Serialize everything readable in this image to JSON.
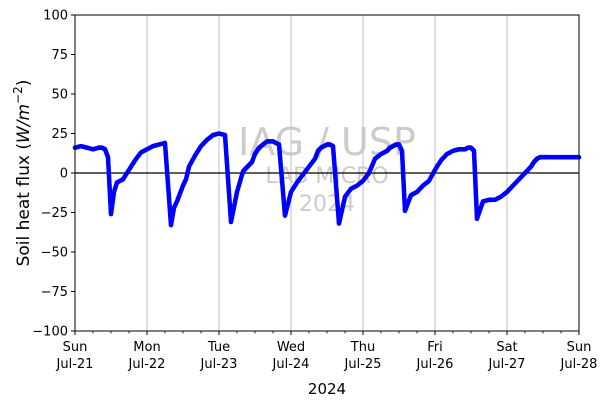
{
  "chart_data": {
    "type": "scatter",
    "ylabel": "Soil heat flux (W/m⁻²)",
    "ylabel_main": "Soil heat flux (",
    "ylabel_unit_base": "W",
    "ylabel_unit_slash": "/",
    "ylabel_unit_m": "m",
    "ylabel_unit_exp": "−2",
    "ylabel_close": ")",
    "xlabel": "2024",
    "ylim": [
      -100,
      100
    ],
    "yticks": [
      "−100",
      "−75",
      "−50",
      "−25",
      "0",
      "25",
      "50",
      "75",
      "100"
    ],
    "ytick_values": [
      -100,
      -75,
      -50,
      -25,
      0,
      25,
      50,
      75,
      100
    ],
    "xlim": [
      "2024-07-21",
      "2024-07-28"
    ],
    "xticks": [
      {
        "day": "Sun",
        "date": "Jul-21"
      },
      {
        "day": "Mon",
        "date": "Jul-22"
      },
      {
        "day": "Tue",
        "date": "Jul-23"
      },
      {
        "day": "Wed",
        "date": "Jul-24"
      },
      {
        "day": "Thu",
        "date": "Jul-25"
      },
      {
        "day": "Fri",
        "date": "Jul-26"
      },
      {
        "day": "Sat",
        "date": "Jul-27"
      },
      {
        "day": "Sun",
        "date": "Jul-28"
      }
    ],
    "grid": "vertical",
    "zero_line": true,
    "marker_color": "#0000ff",
    "watermark": [
      "IAG / USP",
      "LAB MICRO",
      "2024"
    ],
    "series": [
      {
        "x": [
          "2024-07-21 00:00",
          "2024-07-21 02:00",
          "2024-07-21 04:00",
          "2024-07-21 06:00",
          "2024-07-21 08:00",
          "2024-07-21 09:00",
          "2024-07-21 10:00",
          "2024-07-21 11:00",
          "2024-07-21 12:00",
          "2024-07-21 13:00",
          "2024-07-21 14:00",
          "2024-07-21 16:00",
          "2024-07-21 18:00",
          "2024-07-21 20:00",
          "2024-07-21 22:00",
          "2024-07-22 00:00",
          "2024-07-22 02:00",
          "2024-07-22 04:00",
          "2024-07-22 06:00",
          "2024-07-22 08:00",
          "2024-07-22 09:00",
          "2024-07-22 10:00",
          "2024-07-22 11:00",
          "2024-07-22 12:00",
          "2024-07-22 13:00",
          "2024-07-22 14:00",
          "2024-07-22 16:00",
          "2024-07-22 18:00",
          "2024-07-22 20:00",
          "2024-07-22 22:00",
          "2024-07-23 00:00",
          "2024-07-23 02:00",
          "2024-07-23 04:00",
          "2024-07-23 06:00",
          "2024-07-23 08:00",
          "2024-07-23 09:00",
          "2024-07-23 10:00",
          "2024-07-23 11:00",
          "2024-07-23 12:00",
          "2024-07-23 13:00",
          "2024-07-23 14:00",
          "2024-07-23 16:00",
          "2024-07-23 18:00",
          "2024-07-23 20:00",
          "2024-07-23 22:00",
          "2024-07-24 00:00",
          "2024-07-24 02:00",
          "2024-07-24 04:00",
          "2024-07-24 06:00",
          "2024-07-24 08:00",
          "2024-07-24 09:00",
          "2024-07-24 10:00",
          "2024-07-24 11:00",
          "2024-07-24 12:00",
          "2024-07-24 13:00",
          "2024-07-24 14:00",
          "2024-07-24 16:00",
          "2024-07-24 18:00",
          "2024-07-24 20:00",
          "2024-07-24 22:00",
          "2024-07-25 00:00",
          "2024-07-25 02:00",
          "2024-07-25 04:00",
          "2024-07-25 06:00",
          "2024-07-25 08:00",
          "2024-07-25 09:00",
          "2024-07-25 10:00",
          "2024-07-25 11:00",
          "2024-07-25 12:00",
          "2024-07-25 13:00",
          "2024-07-25 14:00",
          "2024-07-25 16:00",
          "2024-07-25 18:00",
          "2024-07-25 20:00",
          "2024-07-25 22:00",
          "2024-07-26 00:00",
          "2024-07-26 02:00",
          "2024-07-26 04:00",
          "2024-07-26 06:00",
          "2024-07-26 08:00",
          "2024-07-26 09:00",
          "2024-07-26 10:00",
          "2024-07-26 11:00",
          "2024-07-26 12:00",
          "2024-07-26 13:00",
          "2024-07-26 14:00",
          "2024-07-26 16:00",
          "2024-07-26 18:00",
          "2024-07-26 20:00",
          "2024-07-26 22:00",
          "2024-07-27 00:00",
          "2024-07-27 02:00",
          "2024-07-27 04:00",
          "2024-07-27 06:00",
          "2024-07-27 08:00",
          "2024-07-27 09:00",
          "2024-07-27 10:00",
          "2024-07-27 11:00",
          "2024-07-27 12:00",
          "2024-07-27 13:00",
          "2024-07-27 14:00",
          "2024-07-27 16:00",
          "2024-07-27 18:00",
          "2024-07-27 20:00",
          "2024-07-27 22:00",
          "2024-07-28 00:00"
        ],
        "y": [
          16,
          17,
          16,
          15,
          16,
          16,
          15,
          10,
          -26,
          -12,
          -6,
          -4,
          2,
          8,
          13,
          15,
          17,
          18,
          19,
          -33,
          -22,
          -18,
          -13,
          -8,
          -4,
          4,
          11,
          17,
          21,
          24,
          25,
          24,
          -31,
          -12,
          1,
          3,
          5,
          7,
          12,
          15,
          17,
          20,
          20,
          18,
          -27,
          -12,
          -6,
          -1,
          4,
          9,
          14,
          16,
          17,
          18,
          18,
          17,
          -32,
          -15,
          -10,
          -8,
          -5,
          0,
          9,
          12,
          14,
          16,
          17,
          18,
          18,
          14,
          -24,
          -14,
          -12,
          -8,
          -5,
          2,
          8,
          12,
          14,
          15,
          15,
          15,
          16,
          16,
          14,
          -29,
          -18,
          -17,
          -17,
          -15,
          -12,
          -8,
          -4,
          0,
          4,
          7,
          9,
          10,
          10,
          10,
          10,
          10,
          10,
          10,
          10,
          10
        ]
      }
    ]
  }
}
